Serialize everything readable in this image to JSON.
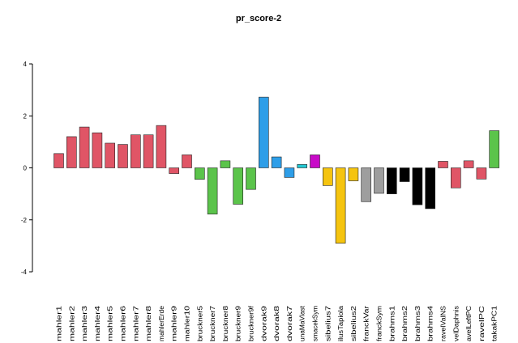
{
  "chart_data": {
    "type": "bar",
    "title": "pr_score-2",
    "xlabel": "",
    "ylabel": "",
    "ylim": [
      -4,
      4
    ],
    "yticks": [
      -4,
      -2,
      0,
      2,
      4
    ],
    "grid": false,
    "categories": [
      "mahler1",
      "mahler2",
      "mahler3",
      "mahler4",
      "mahler5",
      "mahler6",
      "mahler7",
      "mahler8",
      "mahlerErde",
      "mahler9",
      "mahler10",
      "bruckner5",
      "bruckner7",
      "bruckner8",
      "bruckner9",
      "bruckner9f",
      "dvorak9",
      "dvorak8",
      "dvorak7",
      "unaMaVlast",
      "smacekSym",
      "sibelius7",
      "ilusTapiola",
      "sibelius2",
      "franckVar",
      "franckSym",
      "brahms1",
      "brahms2",
      "brahms3",
      "brahms4",
      "ravelValNS",
      "velDaphnis",
      "avelLeftPC",
      "ravelPC",
      "takakPC1"
    ],
    "values": [
      0.55,
      1.2,
      1.57,
      1.35,
      0.95,
      0.9,
      1.27,
      1.27,
      1.63,
      -0.22,
      0.5,
      -0.44,
      -1.78,
      0.27,
      -1.4,
      -0.83,
      2.72,
      0.42,
      -0.37,
      0.13,
      0.5,
      -0.68,
      -2.9,
      -0.5,
      -1.3,
      -0.98,
      -1.0,
      -0.53,
      -1.42,
      -1.57,
      0.25,
      -0.77,
      0.27,
      -0.43,
      1.43
    ],
    "colors": [
      "#E05566",
      "#E05566",
      "#E05566",
      "#E05566",
      "#E05566",
      "#E05566",
      "#E05566",
      "#E05566",
      "#E05566",
      "#E05566",
      "#E05566",
      "#5BC44B",
      "#5BC44B",
      "#5BC44B",
      "#5BC44B",
      "#5BC44B",
      "#2E9EE8",
      "#2E9EE8",
      "#2E9EE8",
      "#22C8D2",
      "#C80AC8",
      "#F5C40F",
      "#F5C40F",
      "#F5C40F",
      "#9E9E9E",
      "#9E9E9E",
      "#000000",
      "#000000",
      "#000000",
      "#000000",
      "#E05566",
      "#E05566",
      "#E05566",
      "#E05566",
      "#5BC44B"
    ]
  }
}
